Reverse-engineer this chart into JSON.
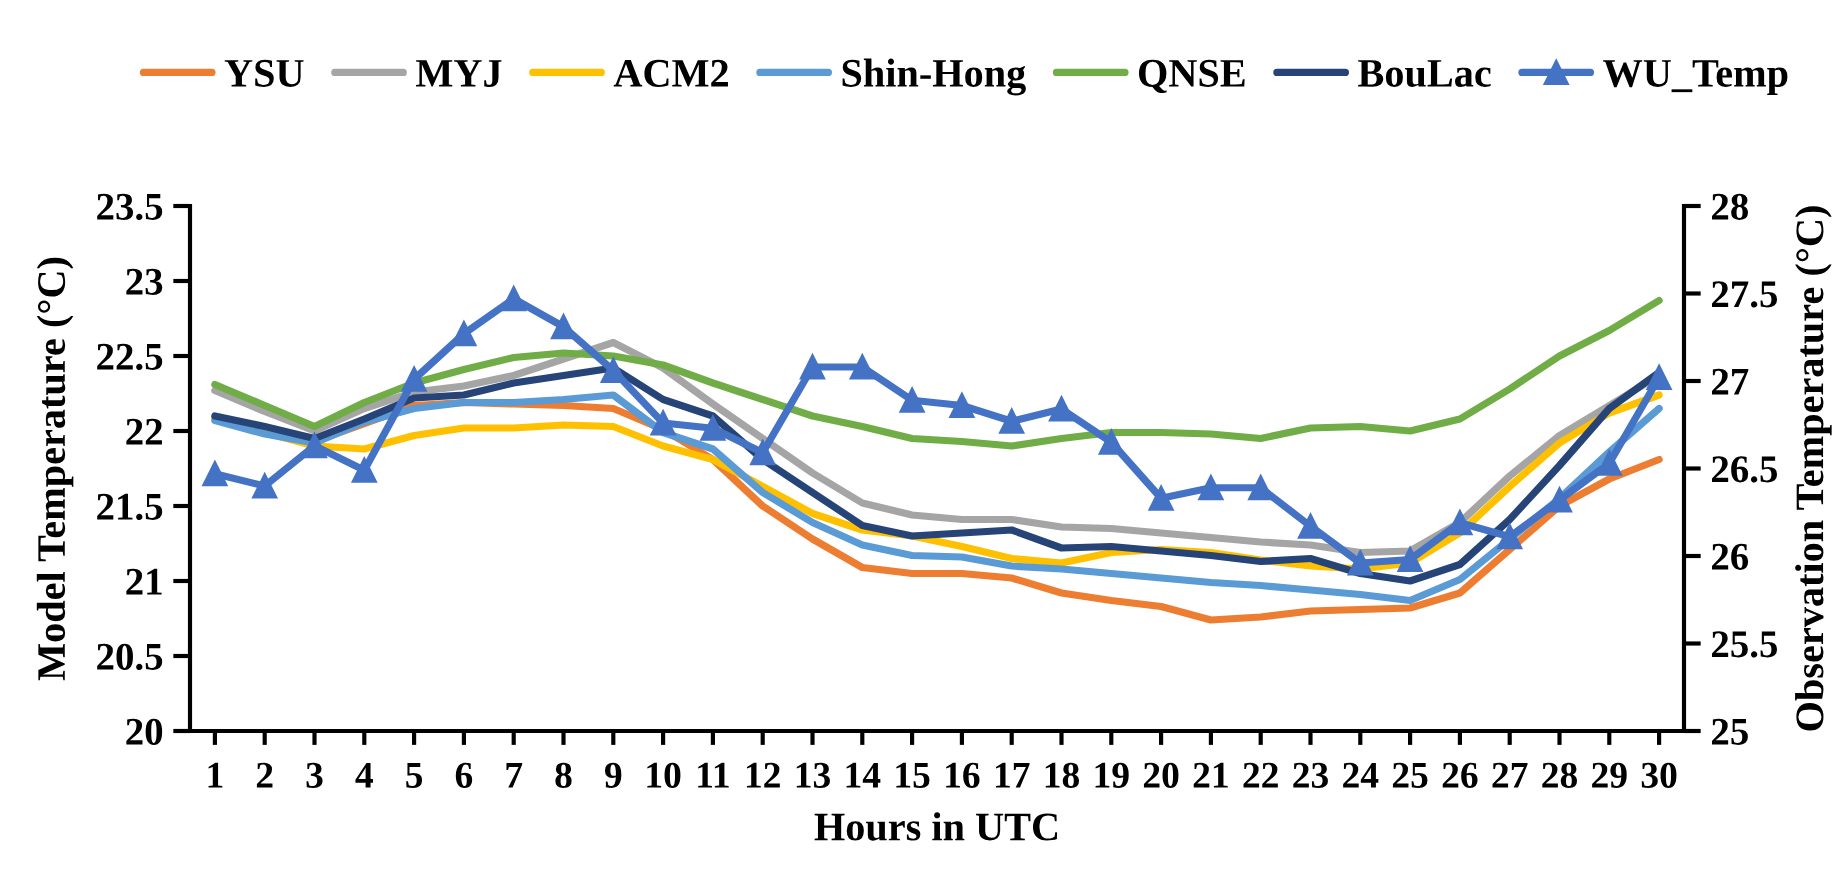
{
  "chart_data": {
    "type": "line",
    "xlabel": "Hours in UTC",
    "ylabel": "Model Temperature (°C)",
    "y2label": "Observation Temperature (°C)",
    "categories": [
      "1",
      "2",
      "3",
      "4",
      "5",
      "6",
      "7",
      "8",
      "9",
      "10",
      "11",
      "12",
      "13",
      "14",
      "15",
      "16",
      "17",
      "18",
      "19",
      "20",
      "21",
      "22",
      "23",
      "24",
      "25",
      "26",
      "27",
      "28",
      "29",
      "30"
    ],
    "ylim": [
      20,
      23.5
    ],
    "yticks": [
      20,
      20.5,
      21,
      21.5,
      22,
      22.5,
      23,
      23.5
    ],
    "y2lim": [
      25,
      28
    ],
    "y2ticks": [
      25,
      25.5,
      26,
      26.5,
      27,
      27.5,
      28
    ],
    "legend": "top",
    "marker": "none",
    "line_style": "solid",
    "series": [
      {
        "name": "YSU",
        "color": "#ed7d31",
        "values": [
          null,
          null,
          21.93,
          22.05,
          22.17,
          22.19,
          22.18,
          22.17,
          22.15,
          22.01,
          21.81,
          21.5,
          21.28,
          21.09,
          21.05,
          21.05,
          21.02,
          20.92,
          20.87,
          20.83,
          20.74,
          20.76,
          20.8,
          20.81,
          20.82,
          20.92,
          21.21,
          21.5,
          21.68,
          21.81
        ]
      },
      {
        "name": "MYJ",
        "color": "#a5a5a5",
        "values": [
          22.27,
          22.13,
          22.0,
          22.15,
          22.26,
          22.3,
          22.37,
          22.48,
          22.59,
          22.42,
          22.18,
          21.95,
          21.72,
          21.52,
          21.44,
          21.41,
          21.41,
          21.36,
          21.35,
          21.32,
          21.29,
          21.26,
          21.24,
          21.19,
          21.2,
          21.39,
          21.7,
          21.97,
          22.17,
          22.37
        ]
      },
      {
        "name": "ACM2",
        "color": "#ffc000",
        "values": [
          22.08,
          21.99,
          21.9,
          21.88,
          21.97,
          22.02,
          22.02,
          22.04,
          22.03,
          21.9,
          21.81,
          21.63,
          21.45,
          21.34,
          21.3,
          21.23,
          21.15,
          21.12,
          21.19,
          21.21,
          21.19,
          21.14,
          21.1,
          21.08,
          21.12,
          21.32,
          21.63,
          21.92,
          22.12,
          22.24
        ]
      },
      {
        "name": "Shin-Hong",
        "color": "#5b9bd5",
        "values": [
          22.07,
          21.98,
          21.92,
          22.06,
          22.15,
          22.19,
          22.19,
          22.21,
          22.24,
          21.99,
          21.88,
          21.59,
          21.39,
          21.24,
          21.17,
          21.16,
          21.1,
          21.08,
          21.05,
          21.02,
          20.99,
          20.97,
          20.94,
          20.91,
          20.87,
          21.01,
          21.28,
          21.55,
          21.86,
          22.15
        ]
      },
      {
        "name": "QNSE",
        "color": "#70ad47",
        "values": [
          22.31,
          22.17,
          22.03,
          22.19,
          22.32,
          22.41,
          22.49,
          22.52,
          22.5,
          22.44,
          22.32,
          22.21,
          22.1,
          22.03,
          21.95,
          21.93,
          21.9,
          21.95,
          21.99,
          21.99,
          21.98,
          21.95,
          22.02,
          22.03,
          22.0,
          22.08,
          22.28,
          22.5,
          22.67,
          22.87
        ]
      },
      {
        "name": "BouLac",
        "color": "#264478",
        "values": [
          22.1,
          22.03,
          21.95,
          22.08,
          22.22,
          22.24,
          22.32,
          22.37,
          22.42,
          22.21,
          22.1,
          21.81,
          21.59,
          21.37,
          21.3,
          21.32,
          21.34,
          21.22,
          21.23,
          21.2,
          21.17,
          21.13,
          21.15,
          21.05,
          21.0,
          21.11,
          21.41,
          21.77,
          22.15,
          22.39
        ]
      },
      {
        "name": "WU_Temp",
        "color": "#4472c4",
        "axis": "y2",
        "marker": "triangle",
        "values": [
          26.47,
          26.4,
          26.63,
          26.49,
          27.01,
          27.27,
          27.47,
          27.31,
          27.06,
          26.76,
          26.73,
          26.59,
          27.08,
          27.08,
          26.89,
          26.86,
          26.77,
          26.84,
          26.65,
          26.33,
          26.39,
          26.39,
          26.17,
          25.96,
          25.98,
          26.19,
          26.11,
          26.32,
          26.53,
          27.02
        ]
      }
    ]
  }
}
